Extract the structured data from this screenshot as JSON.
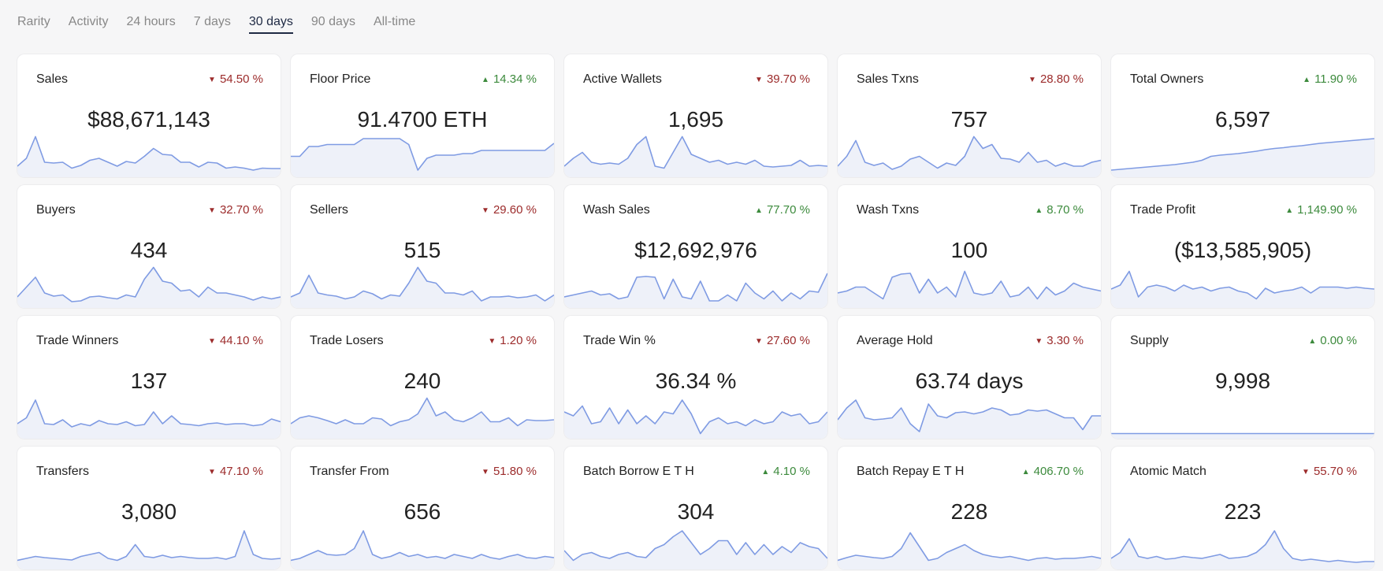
{
  "tabs": [
    {
      "label": "Rarity",
      "active": false
    },
    {
      "label": "Activity",
      "active": false
    },
    {
      "label": "24 hours",
      "active": false
    },
    {
      "label": "7 days",
      "active": false
    },
    {
      "label": "30 days",
      "active": true
    },
    {
      "label": "90 days",
      "active": false
    },
    {
      "label": "All-time",
      "active": false
    }
  ],
  "cards": [
    {
      "title": "Sales",
      "change": "54.50 %",
      "dir": "down",
      "value": "$88,671,143",
      "trend": [
        0.2,
        0.4,
        0.95,
        0.3,
        0.28,
        0.3,
        0.15,
        0.22,
        0.35,
        0.4,
        0.3,
        0.2,
        0.32,
        0.28,
        0.45,
        0.65,
        0.5,
        0.48,
        0.3,
        0.3,
        0.18,
        0.3,
        0.28,
        0.15,
        0.18,
        0.15,
        0.1,
        0.15,
        0.14,
        0.14
      ]
    },
    {
      "title": "Floor Price",
      "change": "14.34 %",
      "dir": "up",
      "value": "91.4700 ETH",
      "trend": [
        0.45,
        0.45,
        0.7,
        0.7,
        0.75,
        0.75,
        0.75,
        0.75,
        0.9,
        0.9,
        0.9,
        0.9,
        0.9,
        0.75,
        0.1,
        0.4,
        0.48,
        0.48,
        0.48,
        0.52,
        0.52,
        0.6,
        0.6,
        0.6,
        0.6,
        0.6,
        0.6,
        0.6,
        0.6,
        0.78
      ]
    },
    {
      "title": "Active Wallets",
      "change": "39.70 %",
      "dir": "down",
      "value": "1,695",
      "trend": [
        0.2,
        0.4,
        0.55,
        0.3,
        0.25,
        0.28,
        0.25,
        0.4,
        0.75,
        0.95,
        0.2,
        0.15,
        0.55,
        0.95,
        0.5,
        0.4,
        0.3,
        0.35,
        0.25,
        0.3,
        0.25,
        0.35,
        0.2,
        0.18,
        0.2,
        0.22,
        0.35,
        0.2,
        0.22,
        0.2
      ]
    },
    {
      "title": "Sales Txns",
      "change": "28.80 %",
      "dir": "down",
      "value": "757",
      "trend": [
        0.2,
        0.45,
        0.85,
        0.3,
        0.22,
        0.28,
        0.12,
        0.2,
        0.38,
        0.45,
        0.3,
        0.15,
        0.28,
        0.22,
        0.45,
        0.95,
        0.65,
        0.75,
        0.4,
        0.38,
        0.3,
        0.55,
        0.3,
        0.35,
        0.2,
        0.28,
        0.2,
        0.2,
        0.3,
        0.35
      ]
    },
    {
      "title": "Total Owners",
      "change": "11.90 %",
      "dir": "up",
      "value": "6,597",
      "trend": [
        0.1,
        0.12,
        0.14,
        0.16,
        0.18,
        0.2,
        0.22,
        0.24,
        0.27,
        0.3,
        0.35,
        0.45,
        0.48,
        0.5,
        0.52,
        0.55,
        0.58,
        0.62,
        0.65,
        0.67,
        0.7,
        0.72,
        0.75,
        0.78,
        0.8,
        0.82,
        0.84,
        0.86,
        0.88,
        0.9
      ]
    },
    {
      "title": "Buyers",
      "change": "32.70 %",
      "dir": "down",
      "value": "434",
      "trend": [
        0.2,
        0.45,
        0.7,
        0.3,
        0.22,
        0.25,
        0.08,
        0.1,
        0.2,
        0.22,
        0.18,
        0.15,
        0.25,
        0.2,
        0.65,
        0.95,
        0.6,
        0.55,
        0.35,
        0.38,
        0.2,
        0.45,
        0.3,
        0.3,
        0.25,
        0.2,
        0.12,
        0.2,
        0.15,
        0.2
      ]
    },
    {
      "title": "Sellers",
      "change": "29.60 %",
      "dir": "down",
      "value": "515",
      "trend": [
        0.2,
        0.3,
        0.75,
        0.3,
        0.25,
        0.22,
        0.15,
        0.2,
        0.35,
        0.28,
        0.15,
        0.25,
        0.22,
        0.55,
        0.95,
        0.6,
        0.55,
        0.3,
        0.3,
        0.25,
        0.35,
        0.1,
        0.2,
        0.2,
        0.22,
        0.18,
        0.2,
        0.25,
        0.1,
        0.25
      ]
    },
    {
      "title": "Wash Sales",
      "change": "77.70 %",
      "dir": "up",
      "value": "$12,692,976",
      "trend": [
        0.2,
        0.25,
        0.3,
        0.35,
        0.25,
        0.28,
        0.15,
        0.2,
        0.7,
        0.72,
        0.7,
        0.15,
        0.65,
        0.2,
        0.15,
        0.6,
        0.1,
        0.1,
        0.25,
        0.1,
        0.55,
        0.3,
        0.15,
        0.35,
        0.1,
        0.3,
        0.15,
        0.35,
        0.32,
        0.8
      ]
    },
    {
      "title": "Wash Txns",
      "change": "8.70 %",
      "dir": "up",
      "value": "100",
      "trend": [
        0.3,
        0.35,
        0.45,
        0.45,
        0.3,
        0.15,
        0.7,
        0.78,
        0.8,
        0.3,
        0.65,
        0.3,
        0.45,
        0.2,
        0.85,
        0.3,
        0.25,
        0.3,
        0.6,
        0.2,
        0.25,
        0.45,
        0.15,
        0.45,
        0.25,
        0.35,
        0.55,
        0.45,
        0.4,
        0.35
      ]
    },
    {
      "title": "Trade Profit",
      "change": "1,149.90 %",
      "dir": "up",
      "value": "($13,585,905)",
      "trend": [
        0.4,
        0.5,
        0.85,
        0.2,
        0.45,
        0.5,
        0.45,
        0.35,
        0.5,
        0.4,
        0.45,
        0.35,
        0.42,
        0.45,
        0.35,
        0.3,
        0.15,
        0.42,
        0.3,
        0.35,
        0.38,
        0.45,
        0.3,
        0.45,
        0.45,
        0.45,
        0.42,
        0.45,
        0.42,
        0.4
      ]
    },
    {
      "title": "Trade Winners",
      "change": "44.10 %",
      "dir": "down",
      "value": "137",
      "trend": [
        0.3,
        0.45,
        0.9,
        0.3,
        0.28,
        0.4,
        0.22,
        0.3,
        0.25,
        0.38,
        0.3,
        0.28,
        0.35,
        0.25,
        0.28,
        0.6,
        0.3,
        0.5,
        0.3,
        0.28,
        0.25,
        0.3,
        0.32,
        0.28,
        0.3,
        0.3,
        0.25,
        0.28,
        0.42,
        0.35
      ]
    },
    {
      "title": "Trade Losers",
      "change": "1.20 %",
      "dir": "down",
      "value": "240",
      "trend": [
        0.3,
        0.45,
        0.5,
        0.45,
        0.38,
        0.3,
        0.4,
        0.3,
        0.3,
        0.45,
        0.42,
        0.25,
        0.35,
        0.4,
        0.55,
        0.95,
        0.5,
        0.6,
        0.4,
        0.35,
        0.45,
        0.6,
        0.35,
        0.35,
        0.45,
        0.25,
        0.4,
        0.38,
        0.38,
        0.4
      ]
    },
    {
      "title": "Trade Win %",
      "change": "27.60 %",
      "dir": "down",
      "value": "36.34 %",
      "trend": [
        0.6,
        0.5,
        0.75,
        0.3,
        0.35,
        0.7,
        0.3,
        0.65,
        0.3,
        0.5,
        0.3,
        0.6,
        0.55,
        0.9,
        0.55,
        0.05,
        0.35,
        0.45,
        0.3,
        0.35,
        0.25,
        0.4,
        0.3,
        0.35,
        0.6,
        0.5,
        0.55,
        0.3,
        0.35,
        0.6
      ]
    },
    {
      "title": "Average Hold",
      "change": "3.30 %",
      "dir": "down",
      "value": "63.74 days",
      "trend": [
        0.4,
        0.7,
        0.9,
        0.45,
        0.4,
        0.42,
        0.45,
        0.7,
        0.3,
        0.1,
        0.8,
        0.5,
        0.45,
        0.58,
        0.6,
        0.55,
        0.6,
        0.7,
        0.65,
        0.52,
        0.55,
        0.65,
        0.62,
        0.65,
        0.55,
        0.45,
        0.45,
        0.15,
        0.5,
        0.5
      ]
    },
    {
      "title": "Supply",
      "change": "0.00 %",
      "dir": "up",
      "value": "9,998",
      "trend": [
        0.05,
        0.05,
        0.05,
        0.05,
        0.05,
        0.05,
        0.05,
        0.05,
        0.05,
        0.05,
        0.05,
        0.05,
        0.05,
        0.05,
        0.05,
        0.05,
        0.05,
        0.05,
        0.05,
        0.05,
        0.05,
        0.05,
        0.05,
        0.05,
        0.05,
        0.05,
        0.05,
        0.05,
        0.05,
        0.05
      ]
    },
    {
      "title": "Transfers",
      "change": "47.10 %",
      "dir": "down",
      "value": "3,080",
      "trend": [
        0.15,
        0.2,
        0.25,
        0.22,
        0.2,
        0.18,
        0.16,
        0.25,
        0.3,
        0.35,
        0.2,
        0.15,
        0.25,
        0.55,
        0.25,
        0.22,
        0.28,
        0.22,
        0.25,
        0.22,
        0.2,
        0.2,
        0.22,
        0.18,
        0.25,
        0.9,
        0.3,
        0.2,
        0.18,
        0.2
      ]
    },
    {
      "title": "Transfer From",
      "change": "51.80 %",
      "dir": "down",
      "value": "656",
      "trend": [
        0.15,
        0.2,
        0.3,
        0.4,
        0.3,
        0.28,
        0.3,
        0.45,
        0.9,
        0.3,
        0.2,
        0.25,
        0.35,
        0.25,
        0.3,
        0.22,
        0.25,
        0.2,
        0.3,
        0.25,
        0.2,
        0.3,
        0.22,
        0.18,
        0.25,
        0.3,
        0.22,
        0.2,
        0.25,
        0.22
      ]
    },
    {
      "title": "Batch Borrow E T H",
      "change": "4.10 %",
      "dir": "up",
      "value": "304",
      "trend": [
        0.4,
        0.15,
        0.3,
        0.35,
        0.25,
        0.2,
        0.3,
        0.35,
        0.25,
        0.22,
        0.45,
        0.55,
        0.75,
        0.9,
        0.6,
        0.3,
        0.45,
        0.65,
        0.65,
        0.3,
        0.6,
        0.3,
        0.55,
        0.3,
        0.5,
        0.35,
        0.6,
        0.5,
        0.45,
        0.2
      ]
    },
    {
      "title": "Batch Repay E T H",
      "change": "406.70 %",
      "dir": "up",
      "value": "228",
      "trend": [
        0.15,
        0.22,
        0.28,
        0.25,
        0.22,
        0.2,
        0.25,
        0.45,
        0.85,
        0.5,
        0.15,
        0.2,
        0.35,
        0.45,
        0.55,
        0.4,
        0.3,
        0.25,
        0.22,
        0.25,
        0.2,
        0.15,
        0.2,
        0.22,
        0.18,
        0.2,
        0.2,
        0.22,
        0.25,
        0.2
      ]
    },
    {
      "title": "Atomic Match",
      "change": "55.70 %",
      "dir": "down",
      "value": "223",
      "trend": [
        0.2,
        0.35,
        0.7,
        0.25,
        0.2,
        0.25,
        0.18,
        0.2,
        0.25,
        0.22,
        0.2,
        0.25,
        0.3,
        0.2,
        0.22,
        0.25,
        0.35,
        0.55,
        0.9,
        0.45,
        0.2,
        0.15,
        0.18,
        0.15,
        0.12,
        0.15,
        0.12,
        0.1,
        0.12,
        0.12
      ]
    }
  ]
}
